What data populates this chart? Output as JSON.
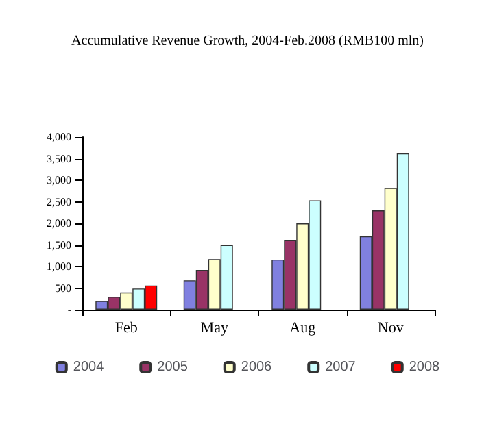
{
  "chart_data": {
    "type": "bar",
    "title": "Accumulative Revenue Growth, 2004-Feb.2008 (RMB100 mln)",
    "categories": [
      "Feb",
      "May",
      "Aug",
      "Nov"
    ],
    "series": [
      {
        "name": "2004",
        "color": "#8080e0",
        "values": [
          200,
          680,
          1160,
          1700
        ]
      },
      {
        "name": "2005",
        "color": "#993366",
        "values": [
          300,
          920,
          1610,
          2300
        ]
      },
      {
        "name": "2006",
        "color": "#ffffcc",
        "values": [
          400,
          1170,
          2000,
          2820
        ]
      },
      {
        "name": "2007",
        "color": "#ccffff",
        "values": [
          490,
          1500,
          2530,
          3620
        ]
      },
      {
        "name": "2008",
        "color": "#ff0000",
        "values": [
          560,
          null,
          null,
          null
        ]
      }
    ],
    "ylim": [
      0,
      4000
    ],
    "yticks": [
      {
        "value": 0,
        "label": "-"
      },
      {
        "value": 500,
        "label": "500"
      },
      {
        "value": 1000,
        "label": "1,000"
      },
      {
        "value": 1500,
        "label": "1,500"
      },
      {
        "value": 2000,
        "label": "2,000"
      },
      {
        "value": 2500,
        "label": "2,500"
      },
      {
        "value": 3000,
        "label": "3,000"
      },
      {
        "value": 3500,
        "label": "3,500"
      },
      {
        "value": 4000,
        "label": "4,000"
      }
    ],
    "grid": false,
    "legend": "bottom"
  }
}
